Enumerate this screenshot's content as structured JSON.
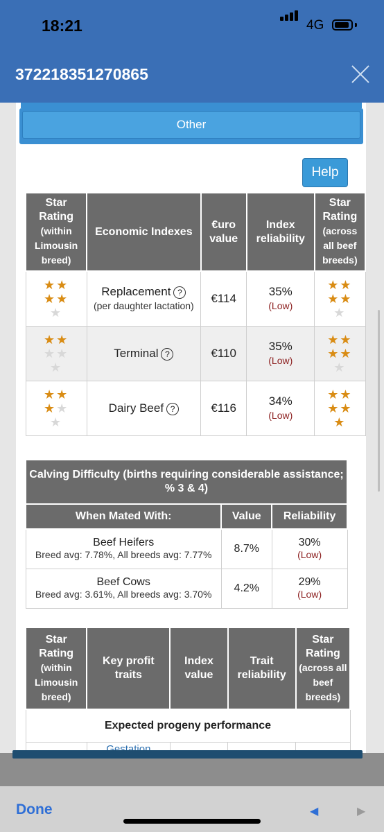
{
  "status_bar": {
    "time": "18:21",
    "network": "4G"
  },
  "header": {
    "title": "372218351270865"
  },
  "buttons": {
    "other_label": "Other",
    "help_label": "Help"
  },
  "economic_table": {
    "headers": {
      "star_within": "Star Rating",
      "star_within_sub": "(within Limousin breed)",
      "economic": "Economic Indexes",
      "value": "€uro value",
      "reliability": "Index reliability",
      "star_across": "Star Rating",
      "star_across_sub": "(across all beef breeds)"
    },
    "rows": [
      {
        "name": "Replacement",
        "sub": "(per daughter lactation)",
        "value": "€114",
        "reliability": "35%",
        "reliability_level": "(Low)",
        "stars_within": 4,
        "stars_across": 4
      },
      {
        "name": "Terminal",
        "sub": "",
        "value": "€110",
        "reliability": "35%",
        "reliability_level": "(Low)",
        "stars_within": 2,
        "stars_across": 4
      },
      {
        "name": "Dairy Beef",
        "sub": "",
        "value": "€116",
        "reliability": "34%",
        "reliability_level": "(Low)",
        "stars_within": 3,
        "stars_across": 5
      }
    ]
  },
  "calving_table": {
    "title": "Calving Difficulty (births requiring considerable assistance; % 3 & 4)",
    "headers": {
      "mated": "When Mated With:",
      "value": "Value",
      "reliability": "Reliability"
    },
    "rows": [
      {
        "name": "Beef Heifers",
        "sub": "Breed avg: 7.78%, All breeds avg: 7.77%",
        "value": "8.7%",
        "reliability": "30%",
        "reliability_level": "(Low)"
      },
      {
        "name": "Beef Cows",
        "sub": "Breed avg: 3.61%, All breeds avg: 3.70%",
        "value": "4.2%",
        "reliability": "29%",
        "reliability_level": "(Low)"
      }
    ]
  },
  "profit_table": {
    "headers": {
      "star_within": "Star Rating",
      "star_within_sub": "(within Limousin breed)",
      "traits": "Key profit traits",
      "index": "Index value",
      "trait_rel": "Trait reliability",
      "star_across": "Star Rating",
      "star_across_sub": "(across all beef breeds)"
    },
    "section": "Expected progeny performance",
    "partial_row": "Gestation"
  },
  "toolbar": {
    "done": "Done",
    "back_icon": "back-arrow-icon",
    "forward_icon": "forward-arrow-icon"
  },
  "colors": {
    "header_blue": "#3a6fb6",
    "table_header": "#6b6b6b",
    "star": "#d98c14",
    "low": "#8b1e1e"
  }
}
